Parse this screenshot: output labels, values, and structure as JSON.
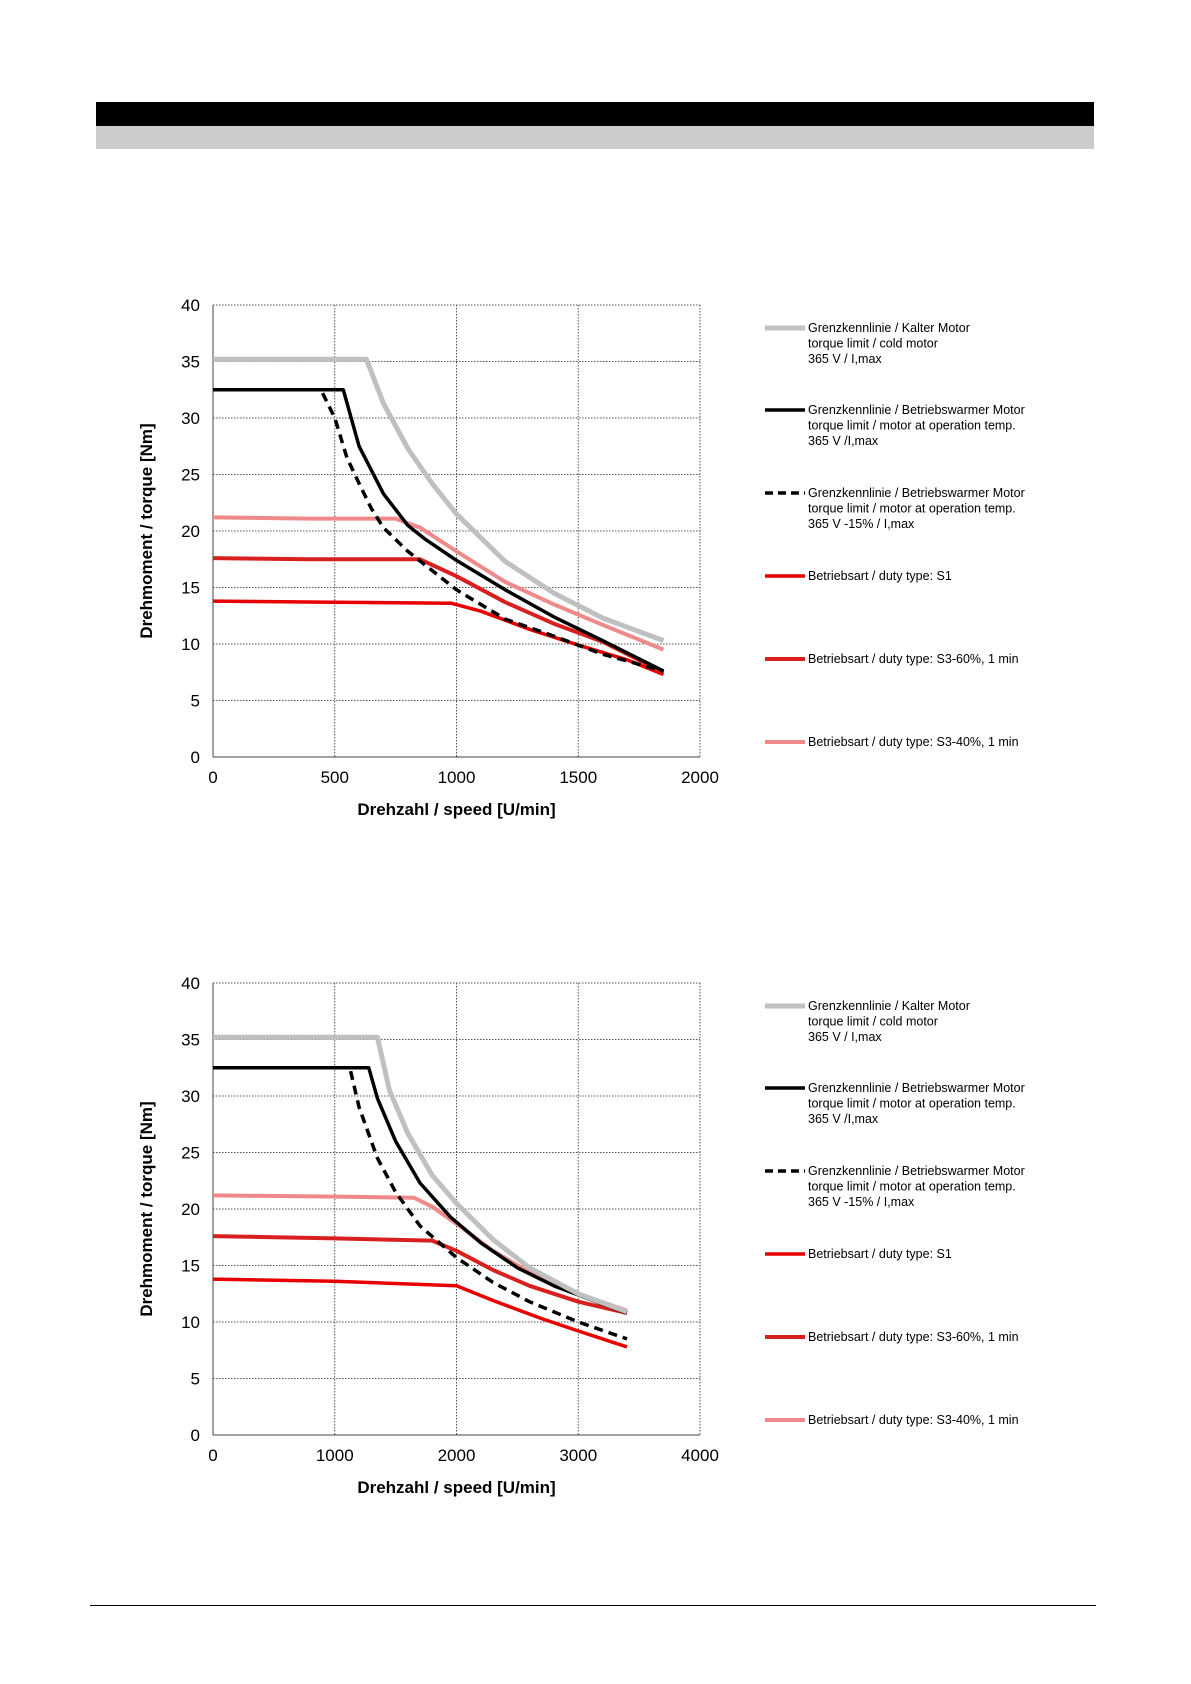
{
  "chart_data": [
    {
      "type": "line",
      "xlabel": "Drehzahl / speed [U/min]",
      "ylabel": "Drehmoment / torque [Nm]",
      "xlim": [
        0,
        2000
      ],
      "ylim": [
        0,
        40
      ],
      "xticks": [
        0,
        500,
        1000,
        1500,
        2000
      ],
      "yticks": [
        0,
        5,
        10,
        15,
        20,
        25,
        30,
        35,
        40
      ],
      "grid": true,
      "legend_position": "right",
      "series": [
        {
          "key": "cold",
          "legend": [
            "Grenzkennlinie / Kalter Motor",
            "torque limit / cold  motor",
            "365 V / I,max"
          ],
          "color": "#c0c0c0",
          "dash": "solid",
          "width": 5,
          "points": [
            [
              0,
              35.2
            ],
            [
              630,
              35.2
            ],
            [
              700,
              31.3
            ],
            [
              800,
              27.3
            ],
            [
              900,
              24.2
            ],
            [
              1000,
              21.5
            ],
            [
              1200,
              17.3
            ],
            [
              1400,
              14.5
            ],
            [
              1600,
              12.3
            ],
            [
              1850,
              10.3
            ]
          ]
        },
        {
          "key": "warm",
          "legend": [
            "Grenzkennlinie / Betriebswarmer Motor",
            "torque limit / motor at operation temp.",
            "365 V /I,max"
          ],
          "color": "#000000",
          "dash": "solid",
          "width": 3.5,
          "points": [
            [
              0,
              32.5
            ],
            [
              535,
              32.5
            ],
            [
              600,
              27.5
            ],
            [
              700,
              23.3
            ],
            [
              800,
              20.5
            ],
            [
              870,
              19.3
            ],
            [
              1000,
              17.4
            ],
            [
              1200,
              14.8
            ],
            [
              1400,
              12.4
            ],
            [
              1600,
              10.3
            ],
            [
              1850,
              7.6
            ]
          ]
        },
        {
          "key": "warm15",
          "legend": [
            "Grenzkennlinie / Betriebswarmer Motor",
            "torque limit / motor at operation temp.",
            "365 V  -15% / I,max"
          ],
          "color": "#000000",
          "dash": "dashed",
          "width": 3.5,
          "points": [
            [
              450,
              32.2
            ],
            [
              500,
              30.0
            ],
            [
              550,
              26.5
            ],
            [
              600,
              24.2
            ],
            [
              650,
              22.0
            ],
            [
              700,
              20.3
            ],
            [
              800,
              18.2
            ],
            [
              1000,
              14.8
            ],
            [
              1200,
              12.2
            ],
            [
              1400,
              10.7
            ],
            [
              1600,
              9.1
            ],
            [
              1850,
              7.6
            ]
          ]
        },
        {
          "key": "s1",
          "legend": [
            "Betriebsart / duty type: S1"
          ],
          "color": "#e80000",
          "dash": "solid",
          "width": 3.5,
          "points": [
            [
              0,
              13.8
            ],
            [
              500,
              13.7
            ],
            [
              980,
              13.6
            ],
            [
              1100,
              12.9
            ],
            [
              1300,
              11.3
            ],
            [
              1500,
              9.9
            ],
            [
              1700,
              8.6
            ],
            [
              1850,
              7.3
            ]
          ]
        },
        {
          "key": "s3_60",
          "legend": [
            "Betriebsart / duty type: S3-60%, 1 min"
          ],
          "color": "#d92020",
          "dash": "solid",
          "width": 4,
          "points": [
            [
              0,
              17.6
            ],
            [
              400,
              17.5
            ],
            [
              850,
              17.5
            ],
            [
              1000,
              16.0
            ],
            [
              1200,
              13.7
            ],
            [
              1400,
              11.8
            ],
            [
              1600,
              10.2
            ],
            [
              1850,
              7.5
            ]
          ]
        },
        {
          "key": "s3_40",
          "legend": [
            "Betriebsart / duty type: S3-40%, 1 min"
          ],
          "color": "#f08a8a",
          "dash": "solid",
          "width": 4,
          "points": [
            [
              0,
              21.2
            ],
            [
              400,
              21.1
            ],
            [
              750,
              21.1
            ],
            [
              850,
              20.3
            ],
            [
              1000,
              18.2
            ],
            [
              1200,
              15.5
            ],
            [
              1400,
              13.5
            ],
            [
              1600,
              11.7
            ],
            [
              1850,
              9.5
            ]
          ]
        }
      ]
    },
    {
      "type": "line",
      "xlabel": "Drehzahl / speed [U/min]",
      "ylabel": "Drehmoment / torque [Nm]",
      "xlim": [
        0,
        4000
      ],
      "ylim": [
        0,
        40
      ],
      "xticks": [
        0,
        1000,
        2000,
        3000,
        4000
      ],
      "yticks": [
        0,
        5,
        10,
        15,
        20,
        25,
        30,
        35,
        40
      ],
      "grid": true,
      "legend_position": "right",
      "series": [
        {
          "key": "cold",
          "legend": [
            "Grenzkennlinie / Kalter Motor",
            "torque limit / cold  motor",
            "365 V / I,max"
          ],
          "color": "#c0c0c0",
          "dash": "solid",
          "width": 5,
          "points": [
            [
              0,
              35.2
            ],
            [
              1350,
              35.2
            ],
            [
              1450,
              30.5
            ],
            [
              1600,
              26.7
            ],
            [
              1800,
              23.0
            ],
            [
              2000,
              20.5
            ],
            [
              2300,
              17.3
            ],
            [
              2600,
              14.8
            ],
            [
              3000,
              12.5
            ],
            [
              3400,
              10.9
            ]
          ]
        },
        {
          "key": "warm",
          "legend": [
            "Grenzkennlinie / Betriebswarmer Motor",
            "torque limit / motor at operation temp.",
            "365 V /I,max"
          ],
          "color": "#000000",
          "dash": "solid",
          "width": 3.5,
          "points": [
            [
              0,
              32.5
            ],
            [
              1280,
              32.5
            ],
            [
              1350,
              29.8
            ],
            [
              1500,
              26.0
            ],
            [
              1700,
              22.3
            ],
            [
              1950,
              19.3
            ],
            [
              2200,
              17.0
            ],
            [
              2500,
              14.8
            ],
            [
              2800,
              13.2
            ],
            [
              3400,
              10.8
            ]
          ]
        },
        {
          "key": "warm15",
          "legend": [
            "Grenzkennlinie / Betriebswarmer Motor",
            "torque limit / motor at operation temp.",
            "365 V  -15% / I,max"
          ],
          "color": "#000000",
          "dash": "dashed",
          "width": 3.5,
          "points": [
            [
              1130,
              32.2
            ],
            [
              1200,
              29.0
            ],
            [
              1350,
              24.5
            ],
            [
              1500,
              21.5
            ],
            [
              1700,
              18.5
            ],
            [
              2000,
              15.7
            ],
            [
              2300,
              13.5
            ],
            [
              2600,
              11.8
            ],
            [
              3000,
              10.0
            ],
            [
              3400,
              8.5
            ]
          ]
        },
        {
          "key": "s1",
          "legend": [
            "Betriebsart / duty type: S1"
          ],
          "color": "#e80000",
          "dash": "solid",
          "width": 3.5,
          "points": [
            [
              0,
              13.8
            ],
            [
              1000,
              13.6
            ],
            [
              2000,
              13.2
            ],
            [
              2300,
              11.9
            ],
            [
              2700,
              10.3
            ],
            [
              3000,
              9.2
            ],
            [
              3400,
              7.8
            ]
          ]
        },
        {
          "key": "s3_60",
          "legend": [
            "Betriebsart / duty type: S3-60%, 1 min"
          ],
          "color": "#d92020",
          "dash": "solid",
          "width": 4,
          "points": [
            [
              0,
              17.6
            ],
            [
              1000,
              17.4
            ],
            [
              1800,
              17.2
            ],
            [
              2000,
              16.3
            ],
            [
              2300,
              14.6
            ],
            [
              2600,
              13.2
            ],
            [
              3000,
              11.8
            ],
            [
              3400,
              10.8
            ]
          ]
        },
        {
          "key": "s3_40",
          "legend": [
            "Betriebsart / duty type: S3-40%, 1 min"
          ],
          "color": "#f08a8a",
          "dash": "solid",
          "width": 4,
          "points": [
            [
              0,
              21.2
            ],
            [
              1000,
              21.1
            ],
            [
              1650,
              21.0
            ],
            [
              1800,
              20.2
            ],
            [
              2000,
              18.7
            ],
            [
              2300,
              16.3
            ],
            [
              2600,
              14.4
            ],
            [
              3000,
              12.5
            ],
            [
              3400,
              11.0
            ]
          ]
        }
      ]
    }
  ]
}
